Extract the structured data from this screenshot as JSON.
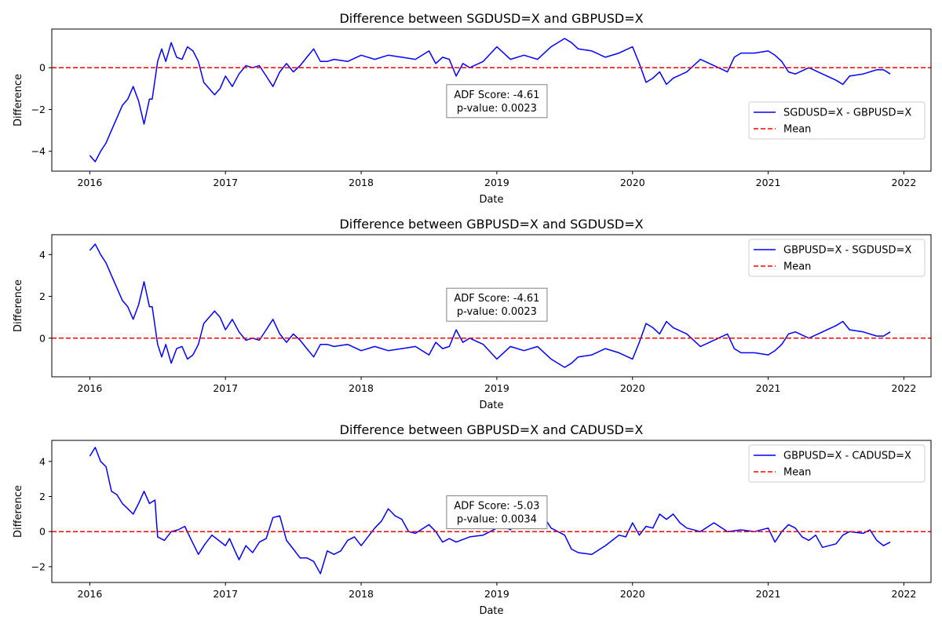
{
  "colors": {
    "series": "#0000ff",
    "mean": "#ff0000",
    "annot_border": "#808080"
  },
  "chart_data": [
    {
      "type": "line",
      "title": "Difference between SGDUSD=X and GBPUSD=X",
      "xlabel": "Date",
      "ylabel": "Difference",
      "xlim": [
        2015.72,
        2022.2
      ],
      "ylim": [
        -4.95,
        1.85
      ],
      "xticks": [
        2016,
        2017,
        2018,
        2019,
        2020,
        2021,
        2022
      ],
      "xtick_labels": [
        "2016",
        "2017",
        "2018",
        "2019",
        "2020",
        "2021",
        "2022"
      ],
      "yticks": [
        -4,
        -2,
        0
      ],
      "ytick_labels": [
        "−4",
        "−2",
        "0"
      ],
      "series_label": "SGDUSD=X - GBPUSD=X",
      "mean_label": "Mean",
      "mean": 0,
      "legend_position": "lower-right",
      "annotation": {
        "line1": "ADF Score: -4.61",
        "line2": "p-value: 0.0023",
        "x": 2019.0,
        "y": -1.6
      },
      "series": {
        "x": [
          2016.0,
          2016.04,
          2016.08,
          2016.12,
          2016.16,
          2016.2,
          2016.24,
          2016.28,
          2016.32,
          2016.36,
          2016.4,
          2016.44,
          2016.46,
          2016.5,
          2016.53,
          2016.56,
          2016.6,
          2016.64,
          2016.68,
          2016.72,
          2016.76,
          2016.8,
          2016.84,
          2016.88,
          2016.92,
          2016.96,
          2017.0,
          2017.05,
          2017.1,
          2017.15,
          2017.2,
          2017.25,
          2017.3,
          2017.35,
          2017.4,
          2017.45,
          2017.5,
          2017.55,
          2017.6,
          2017.65,
          2017.7,
          2017.75,
          2017.8,
          2017.9,
          2018.0,
          2018.1,
          2018.2,
          2018.3,
          2018.4,
          2018.5,
          2018.55,
          2018.6,
          2018.65,
          2018.7,
          2018.75,
          2018.8,
          2018.9,
          2019.0,
          2019.05,
          2019.1,
          2019.2,
          2019.3,
          2019.4,
          2019.5,
          2019.55,
          2019.6,
          2019.7,
          2019.8,
          2019.9,
          2020.0,
          2020.05,
          2020.1,
          2020.15,
          2020.2,
          2020.25,
          2020.3,
          2020.4,
          2020.5,
          2020.6,
          2020.7,
          2020.75,
          2020.8,
          2020.9,
          2021.0,
          2021.05,
          2021.1,
          2021.15,
          2021.2,
          2021.3,
          2021.4,
          2021.5,
          2021.55,
          2021.6,
          2021.7,
          2021.8,
          2021.85,
          2021.9
        ],
        "y": [
          -4.2,
          -4.5,
          -4.0,
          -3.6,
          -3.0,
          -2.4,
          -1.8,
          -1.5,
          -0.9,
          -1.6,
          -2.7,
          -1.5,
          -1.5,
          0.3,
          0.9,
          0.3,
          1.2,
          0.5,
          0.4,
          1.0,
          0.8,
          0.3,
          -0.7,
          -1.0,
          -1.3,
          -1.0,
          -0.4,
          -0.9,
          -0.3,
          0.1,
          0.0,
          0.1,
          -0.4,
          -0.9,
          -0.2,
          0.2,
          -0.2,
          0.1,
          0.5,
          0.9,
          0.3,
          0.3,
          0.4,
          0.3,
          0.6,
          0.4,
          0.6,
          0.5,
          0.4,
          0.8,
          0.2,
          0.5,
          0.4,
          -0.4,
          0.2,
          0.0,
          0.3,
          1.0,
          0.7,
          0.4,
          0.6,
          0.4,
          1.0,
          1.4,
          1.2,
          0.9,
          0.8,
          0.5,
          0.7,
          1.0,
          0.2,
          -0.7,
          -0.5,
          -0.2,
          -0.8,
          -0.5,
          -0.2,
          0.4,
          0.1,
          -0.2,
          0.5,
          0.7,
          0.7,
          0.8,
          0.6,
          0.3,
          -0.2,
          -0.3,
          0.0,
          -0.3,
          -0.6,
          -0.8,
          -0.4,
          -0.3,
          -0.1,
          -0.1,
          -0.3
        ]
      }
    },
    {
      "type": "line",
      "title": "Difference between GBPUSD=X and SGDUSD=X",
      "xlabel": "Date",
      "ylabel": "Difference",
      "xlim": [
        2015.72,
        2022.2
      ],
      "ylim": [
        -1.85,
        4.95
      ],
      "xticks": [
        2016,
        2017,
        2018,
        2019,
        2020,
        2021,
        2022
      ],
      "xtick_labels": [
        "2016",
        "2017",
        "2018",
        "2019",
        "2020",
        "2021",
        "2022"
      ],
      "yticks": [
        0,
        2,
        4
      ],
      "ytick_labels": [
        "0",
        "2",
        "4"
      ],
      "series_label": "GBPUSD=X - SGDUSD=X",
      "mean_label": "Mean",
      "mean": 0,
      "legend_position": "upper-right",
      "annotation": {
        "line1": "ADF Score: -4.61",
        "line2": "p-value: 0.0023",
        "x": 2019.0,
        "y": 1.6
      },
      "series": {
        "x": [
          2016.0,
          2016.04,
          2016.08,
          2016.12,
          2016.16,
          2016.2,
          2016.24,
          2016.28,
          2016.32,
          2016.36,
          2016.4,
          2016.44,
          2016.46,
          2016.5,
          2016.53,
          2016.56,
          2016.6,
          2016.64,
          2016.68,
          2016.72,
          2016.76,
          2016.8,
          2016.84,
          2016.88,
          2016.92,
          2016.96,
          2017.0,
          2017.05,
          2017.1,
          2017.15,
          2017.2,
          2017.25,
          2017.3,
          2017.35,
          2017.4,
          2017.45,
          2017.5,
          2017.55,
          2017.6,
          2017.65,
          2017.7,
          2017.75,
          2017.8,
          2017.9,
          2018.0,
          2018.1,
          2018.2,
          2018.3,
          2018.4,
          2018.5,
          2018.55,
          2018.6,
          2018.65,
          2018.7,
          2018.75,
          2018.8,
          2018.9,
          2019.0,
          2019.05,
          2019.1,
          2019.2,
          2019.3,
          2019.4,
          2019.5,
          2019.55,
          2019.6,
          2019.7,
          2019.8,
          2019.9,
          2020.0,
          2020.05,
          2020.1,
          2020.15,
          2020.2,
          2020.25,
          2020.3,
          2020.4,
          2020.5,
          2020.6,
          2020.7,
          2020.75,
          2020.8,
          2020.9,
          2021.0,
          2021.05,
          2021.1,
          2021.15,
          2021.2,
          2021.3,
          2021.4,
          2021.5,
          2021.55,
          2021.6,
          2021.7,
          2021.8,
          2021.85,
          2021.9
        ],
        "y": [
          4.2,
          4.5,
          4.0,
          3.6,
          3.0,
          2.4,
          1.8,
          1.5,
          0.9,
          1.6,
          2.7,
          1.5,
          1.5,
          -0.3,
          -0.9,
          -0.3,
          -1.2,
          -0.5,
          -0.4,
          -1.0,
          -0.8,
          -0.3,
          0.7,
          1.0,
          1.3,
          1.0,
          0.4,
          0.9,
          0.3,
          -0.1,
          0.0,
          -0.1,
          0.4,
          0.9,
          0.2,
          -0.2,
          0.2,
          -0.1,
          -0.5,
          -0.9,
          -0.3,
          -0.3,
          -0.4,
          -0.3,
          -0.6,
          -0.4,
          -0.6,
          -0.5,
          -0.4,
          -0.8,
          -0.2,
          -0.5,
          -0.4,
          0.4,
          -0.2,
          0.0,
          -0.3,
          -1.0,
          -0.7,
          -0.4,
          -0.6,
          -0.4,
          -1.0,
          -1.4,
          -1.2,
          -0.9,
          -0.8,
          -0.5,
          -0.7,
          -1.0,
          -0.2,
          0.7,
          0.5,
          0.2,
          0.8,
          0.5,
          0.2,
          -0.4,
          -0.1,
          0.2,
          -0.5,
          -0.7,
          -0.7,
          -0.8,
          -0.6,
          -0.3,
          0.2,
          0.3,
          0.0,
          0.3,
          0.6,
          0.8,
          0.4,
          0.3,
          0.1,
          0.1,
          0.3
        ]
      }
    },
    {
      "type": "line",
      "title": "Difference between GBPUSD=X and CADUSD=X",
      "xlabel": "Date",
      "ylabel": "Difference",
      "xlim": [
        2015.72,
        2022.2
      ],
      "ylim": [
        -2.9,
        5.2
      ],
      "xticks": [
        2016,
        2017,
        2018,
        2019,
        2020,
        2021,
        2022
      ],
      "xtick_labels": [
        "2016",
        "2017",
        "2018",
        "2019",
        "2020",
        "2021",
        "2022"
      ],
      "yticks": [
        -2,
        0,
        2,
        4
      ],
      "ytick_labels": [
        "−2",
        "0",
        "2",
        "4"
      ],
      "series_label": "GBPUSD=X - CADUSD=X",
      "mean_label": "Mean",
      "mean": 0,
      "legend_position": "upper-right",
      "annotation": {
        "line1": "ADF Score: -5.03",
        "line2": "p-value: 0.0034",
        "x": 2019.0,
        "y": 1.1
      },
      "series": {
        "x": [
          2016.0,
          2016.04,
          2016.08,
          2016.12,
          2016.16,
          2016.2,
          2016.24,
          2016.28,
          2016.32,
          2016.36,
          2016.4,
          2016.44,
          2016.48,
          2016.5,
          2016.55,
          2016.6,
          2016.65,
          2016.7,
          2016.75,
          2016.8,
          2016.85,
          2016.9,
          2016.95,
          2017.0,
          2017.03,
          2017.07,
          2017.1,
          2017.15,
          2017.2,
          2017.25,
          2017.3,
          2017.35,
          2017.4,
          2017.45,
          2017.5,
          2017.55,
          2017.6,
          2017.65,
          2017.7,
          2017.75,
          2017.8,
          2017.85,
          2017.9,
          2017.95,
          2018.0,
          2018.05,
          2018.1,
          2018.15,
          2018.2,
          2018.25,
          2018.3,
          2018.35,
          2018.4,
          2018.5,
          2018.55,
          2018.6,
          2018.65,
          2018.7,
          2018.8,
          2018.9,
          2019.0,
          2019.05,
          2019.1,
          2019.15,
          2019.2,
          2019.3,
          2019.35,
          2019.4,
          2019.5,
          2019.55,
          2019.6,
          2019.7,
          2019.8,
          2019.9,
          2019.95,
          2020.0,
          2020.05,
          2020.1,
          2020.15,
          2020.2,
          2020.25,
          2020.3,
          2020.35,
          2020.4,
          2020.5,
          2020.6,
          2020.7,
          2020.8,
          2020.9,
          2021.0,
          2021.05,
          2021.1,
          2021.15,
          2021.2,
          2021.25,
          2021.3,
          2021.35,
          2021.4,
          2021.5,
          2021.55,
          2021.6,
          2021.7,
          2021.75,
          2021.8,
          2021.85,
          2021.9
        ],
        "y": [
          4.3,
          4.8,
          4.0,
          3.7,
          2.3,
          2.1,
          1.6,
          1.3,
          1.0,
          1.6,
          2.3,
          1.6,
          1.8,
          -0.3,
          -0.5,
          0.0,
          0.1,
          0.3,
          -0.5,
          -1.3,
          -0.7,
          -0.2,
          -0.5,
          -0.8,
          -0.4,
          -1.1,
          -1.6,
          -0.8,
          -1.2,
          -0.6,
          -0.4,
          0.8,
          0.9,
          -0.5,
          -1.0,
          -1.5,
          -1.5,
          -1.7,
          -2.4,
          -1.1,
          -1.3,
          -1.1,
          -0.5,
          -0.3,
          -0.8,
          -0.3,
          0.2,
          0.6,
          1.3,
          0.9,
          0.7,
          0.0,
          -0.1,
          0.4,
          0.0,
          -0.6,
          -0.4,
          -0.6,
          -0.3,
          -0.2,
          0.2,
          0.3,
          0.1,
          0.8,
          0.7,
          0.5,
          0.8,
          0.2,
          -0.2,
          -1.0,
          -1.2,
          -1.3,
          -0.8,
          -0.2,
          -0.3,
          0.5,
          -0.2,
          0.3,
          0.2,
          1.0,
          0.7,
          1.0,
          0.5,
          0.2,
          0.0,
          0.5,
          0.0,
          0.1,
          0.0,
          0.2,
          -0.6,
          0.0,
          0.4,
          0.2,
          -0.3,
          -0.5,
          -0.2,
          -0.9,
          -0.7,
          -0.2,
          0.0,
          -0.1,
          0.1,
          -0.5,
          -0.8,
          -0.6
        ]
      }
    }
  ]
}
